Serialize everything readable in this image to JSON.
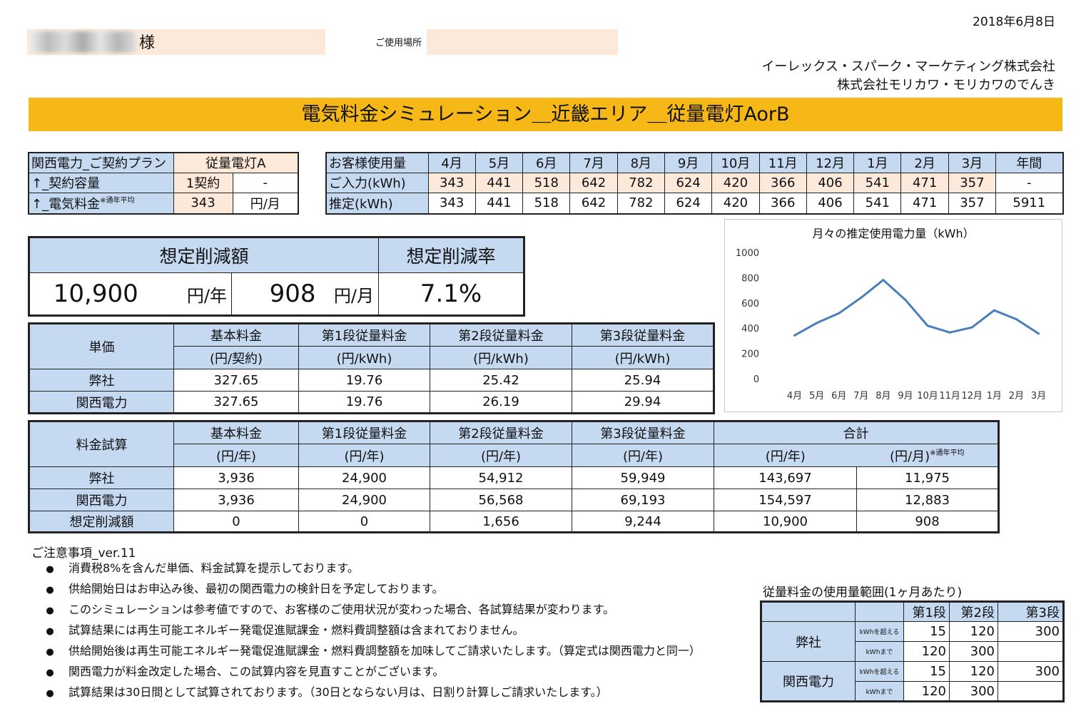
{
  "header": {
    "date": "2018年6月8日",
    "customer_suffix": "様",
    "location_label": "ご使用場所",
    "company1": "イーレックス・スパーク・マーケティング株式会社",
    "company2": "株式会社モリカワ・モリカワのでんき",
    "title": "電気料金シミュレーション＿近畿エリア＿従量電灯AorB"
  },
  "contract": {
    "plan_label": "関西電力_ご契約プラン",
    "plan_value": "従量電灯A",
    "capacity_label": "↑_契約容量",
    "capacity_value": "1契約",
    "capacity_extra": "-",
    "fee_label": "↑_電気料金",
    "fee_note": "※通年平均",
    "fee_value": "343",
    "fee_unit": "円/月"
  },
  "usage": {
    "header_label": "お客様使用量",
    "months": [
      "4月",
      "5月",
      "6月",
      "7月",
      "8月",
      "9月",
      "10月",
      "11月",
      "12月",
      "1月",
      "2月",
      "3月"
    ],
    "annual_label": "年間",
    "input_label": "ご入力(kWh)",
    "input_values": [
      "343",
      "441",
      "518",
      "642",
      "782",
      "624",
      "420",
      "366",
      "406",
      "541",
      "471",
      "357"
    ],
    "input_annual": "-",
    "est_label": "推定(kWh)",
    "est_values": [
      "343",
      "441",
      "518",
      "642",
      "782",
      "624",
      "420",
      "366",
      "406",
      "541",
      "471",
      "357"
    ],
    "est_annual": "5911"
  },
  "savings": {
    "amount_label": "想定削減額",
    "rate_label": "想定削減率",
    "yearly": "10,900",
    "yearly_unit": "円/年",
    "monthly": "908",
    "monthly_unit": "円/月",
    "rate": "7.1%"
  },
  "unit_price": {
    "corner": "単価",
    "headers": [
      {
        "name": "基本料金",
        "unit": "(円/契約)"
      },
      {
        "name": "第1段従量料金",
        "unit": "(円/kWh)"
      },
      {
        "name": "第2段従量料金",
        "unit": "(円/kWh)"
      },
      {
        "name": "第3段従量料金",
        "unit": "(円/kWh)"
      }
    ],
    "rows": [
      {
        "label": "弊社",
        "values": [
          "327.65",
          "19.76",
          "25.42",
          "25.94"
        ]
      },
      {
        "label": "関西電力",
        "values": [
          "327.65",
          "19.76",
          "26.19",
          "29.94"
        ]
      }
    ]
  },
  "calc": {
    "corner": "料金試算",
    "headers": [
      {
        "name": "基本料金",
        "unit": "(円/年)"
      },
      {
        "name": "第1段従量料金",
        "unit": "(円/年)"
      },
      {
        "name": "第2段従量料金",
        "unit": "(円/年)"
      },
      {
        "name": "第3段従量料金",
        "unit": "(円/年)"
      }
    ],
    "total_label": "合計",
    "total_unit_year": "(円/年)",
    "total_unit_month": "(円/月)",
    "total_note": "※通年平均",
    "rows": [
      {
        "label": "弊社",
        "values": [
          "3,936",
          "24,900",
          "54,912",
          "59,949",
          "143,697",
          "11,975"
        ]
      },
      {
        "label": "関西電力",
        "values": [
          "3,936",
          "24,900",
          "56,568",
          "69,193",
          "154,597",
          "12,883"
        ]
      },
      {
        "label": "想定削減額",
        "values": [
          "0",
          "0",
          "1,656",
          "9,244",
          "10,900",
          "908"
        ]
      }
    ]
  },
  "chart_data": {
    "type": "line",
    "title": "月々の推定使用電力量（kWh）",
    "categories": [
      "4月",
      "5月",
      "6月",
      "7月",
      "8月",
      "9月",
      "10月",
      "11月",
      "12月",
      "1月",
      "2月",
      "3月"
    ],
    "values": [
      343,
      441,
      518,
      642,
      782,
      624,
      420,
      366,
      406,
      541,
      471,
      357
    ],
    "ylim": [
      0,
      1000
    ],
    "yticks": [
      "0",
      "200",
      "400",
      "600",
      "800",
      "1000"
    ],
    "color": "#4a7ebb",
    "grid": false,
    "legend": "none"
  },
  "notes": {
    "title": "ご注意事項_ver.11",
    "bullet_symbol": "●",
    "items": [
      "消費税8%を含んだ単価、料金試算を提示しております。",
      "供給開始日はお申込み後、最初の関西電力の検針日を予定しております。",
      "このシミュレーションは参考値ですので、お客様のご使用状況が変わった場合、各試算結果が変わります。",
      "試算結果には再生可能エネルギー発電促進賦課金・燃料費調整額は含まれておりません。",
      "供給開始後は再生可能エネルギー発電促進賦課金・燃料費調整額を加味してご請求いたします。（算定式は関西電力と同一）",
      "関西電力が料金改定した場合、この試算内容を見直すことがございます。",
      "試算結果は30日間として試算されております。（30日とならない月は、日割り計算しご請求いたします。）"
    ]
  },
  "range": {
    "title": "従量料金の使用量範囲(1ヶ月あたり)",
    "headers": [
      "第1段",
      "第2段",
      "第3段"
    ],
    "over_label": "kWhを超える",
    "upto_label": "kWhまで",
    "companies": [
      {
        "name": "弊社",
        "over": [
          "15",
          "120",
          "300"
        ],
        "upto": [
          "120",
          "300",
          ""
        ]
      },
      {
        "name": "関西電力",
        "over": [
          "15",
          "120",
          "300"
        ],
        "upto": [
          "120",
          "300",
          ""
        ]
      }
    ]
  }
}
